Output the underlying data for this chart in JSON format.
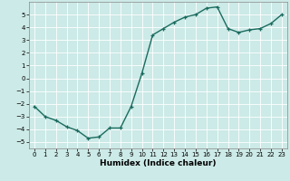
{
  "x": [
    0,
    1,
    2,
    3,
    4,
    5,
    6,
    7,
    8,
    9,
    10,
    11,
    12,
    13,
    14,
    15,
    16,
    17,
    18,
    19,
    20,
    21,
    22,
    23
  ],
  "y": [
    -2.2,
    -3.0,
    -3.3,
    -3.8,
    -4.1,
    -4.7,
    -4.6,
    -3.9,
    -3.9,
    -2.2,
    0.4,
    3.4,
    3.9,
    4.4,
    4.8,
    5.0,
    5.5,
    5.6,
    3.9,
    3.6,
    3.8,
    3.9,
    4.3,
    5.0
  ],
  "line_color": "#1a6b5e",
  "marker": "+",
  "marker_size": 3,
  "linewidth": 1.0,
  "xlabel": "Humidex (Indice chaleur)",
  "ylim": [
    -5.5,
    6.0
  ],
  "xlim": [
    -0.5,
    23.5
  ],
  "yticks": [
    -5,
    -4,
    -3,
    -2,
    -1,
    0,
    1,
    2,
    3,
    4,
    5
  ],
  "xticks": [
    0,
    1,
    2,
    3,
    4,
    5,
    6,
    7,
    8,
    9,
    10,
    11,
    12,
    13,
    14,
    15,
    16,
    17,
    18,
    19,
    20,
    21,
    22,
    23
  ],
  "background_color": "#cceae7",
  "grid_color": "#ffffff",
  "grid_linewidth": 0.6,
  "tick_fontsize": 5.0,
  "xlabel_fontsize": 6.5,
  "spine_color": "#888888"
}
